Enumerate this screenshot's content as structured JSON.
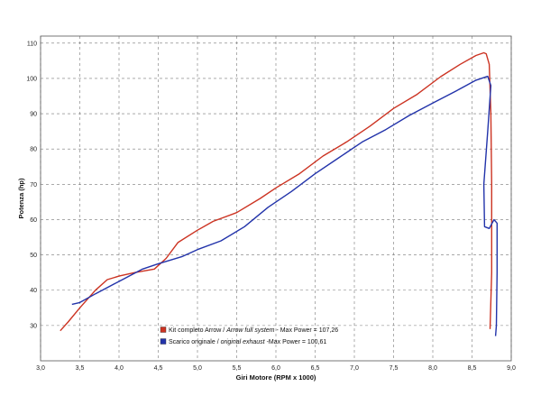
{
  "chart_data": {
    "type": "line",
    "xlabel": "Giri Motore (RPM x 1000)",
    "ylabel": "Potenza (hp)",
    "xlim": [
      3.0,
      9.0
    ],
    "ylim": [
      20,
      112
    ],
    "x_ticks": [
      "3,0",
      "3,5",
      "4,0",
      "4,5",
      "5,0",
      "5,5",
      "6,0",
      "6,5",
      "7,0",
      "7,5",
      "8,0",
      "8,5",
      "9,0"
    ],
    "x_tick_values": [
      3.0,
      3.5,
      4.0,
      4.5,
      5.0,
      5.5,
      6.0,
      6.5,
      7.0,
      7.5,
      8.0,
      8.5,
      9.0
    ],
    "y_ticks": [
      "30",
      "40",
      "50",
      "60",
      "70",
      "80",
      "90",
      "100",
      "110"
    ],
    "y_tick_values": [
      30,
      40,
      50,
      60,
      70,
      80,
      90,
      100,
      110
    ],
    "grid": true,
    "legend_position": "bottom-center",
    "series": [
      {
        "name_parts": [
          "Kit completo Arrow / ",
          "Arrow full system",
          " - Max Power = 107,26"
        ],
        "color": "#cc3322",
        "x": [
          3.25,
          3.35,
          3.5,
          3.7,
          3.85,
          4.0,
          4.2,
          4.45,
          4.6,
          4.75,
          5.0,
          5.2,
          5.5,
          5.8,
          6.0,
          6.3,
          6.6,
          6.9,
          7.2,
          7.5,
          7.8,
          8.1,
          8.35,
          8.55,
          8.65,
          8.68,
          8.72,
          8.74,
          8.75,
          8.75,
          8.73
        ],
        "y": [
          28.5,
          31,
          35,
          40,
          43,
          44,
          45,
          46,
          49,
          53.5,
          57,
          59.5,
          62,
          66,
          69,
          73,
          78,
          82,
          86.5,
          91.5,
          95.5,
          100.5,
          104,
          106.5,
          107.26,
          107,
          104,
          90,
          70,
          45,
          29
        ]
      },
      {
        "name_parts": [
          "Scarico originale / ",
          "original exhaust",
          " -Max Power = 100,61"
        ],
        "color": "#2233aa",
        "x": [
          3.4,
          3.5,
          3.7,
          4.0,
          4.3,
          4.5,
          4.8,
          5.0,
          5.3,
          5.6,
          5.9,
          6.2,
          6.5,
          6.8,
          7.1,
          7.4,
          7.7,
          8.0,
          8.3,
          8.55,
          8.7,
          8.74,
          8.7,
          8.65,
          8.66,
          8.72,
          8.78,
          8.82,
          8.82,
          8.81,
          8.8
        ],
        "y": [
          36,
          36.5,
          39,
          42.5,
          46,
          47.5,
          49.5,
          51.5,
          54,
          58,
          63.5,
          68,
          73,
          77.5,
          82,
          85.5,
          89.5,
          93,
          96.5,
          99.5,
          100.61,
          98,
          85,
          70,
          58,
          57.5,
          60,
          59,
          45,
          30,
          27
        ]
      }
    ]
  }
}
